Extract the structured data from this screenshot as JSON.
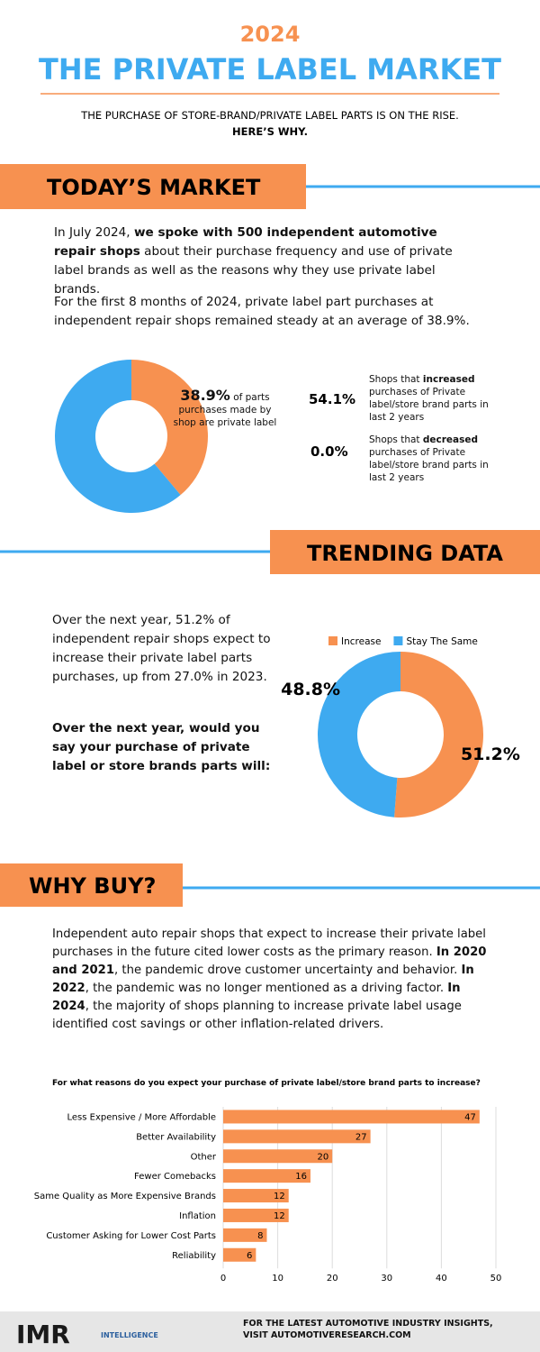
{
  "header": {
    "year": "2024",
    "title": "THE PRIVATE LABEL MARKET",
    "subtitle": "THE PURCHASE OF STORE-BRAND/PRIVATE LABEL PARTS IS ON THE RISE.",
    "subtitle_bold": "HERE’S WHY."
  },
  "market": {
    "heading": "TODAY’S MARKET",
    "paragraph1": [
      "In July 2024, ",
      "we spoke with 500 independent automotive repair shops",
      " about their purchase frequency and use of private label brands as well as the reasons why they use private label brands."
    ],
    "paragraph2": "For the first 8 months of 2024, private label part purchases at independent repair shops remained steady at an average of 38.9%.",
    "stats": [
      {
        "value": "54.1%",
        "text": [
          "Shops that ",
          "increased",
          " purchases of Private label/store brand parts in last 2 years"
        ]
      },
      {
        "value": "0.0%",
        "text": [
          "Shops that ",
          "decreased",
          " purchases of Private label/store brand parts in last 2 years"
        ]
      }
    ]
  },
  "trending": {
    "heading": "TRENDING DATA",
    "paragraph": "Over the next year, 51.2% of independent repair shops expect to increase their private label parts purchases, up from 27.0% in 2023.",
    "question": "Over the next year, would you say your purchase of private label or store brands parts will:"
  },
  "why": {
    "heading": "WHY BUY?",
    "paragraph": [
      "Independent auto repair shops that expect to increase their private label purchases in the future cited lower costs as the primary reason. ",
      "In 2020 and 2021",
      ", the pandemic drove customer uncertainty and behavior. ",
      "In 2022",
      ", the pandemic was no longer mentioned as a driving factor. ",
      "In 2024",
      ", the majority of shops planning to increase private label usage identified cost savings or other inflation-related drivers."
    ]
  },
  "footer": {
    "logo": "IMR",
    "logo_sub": "INTELLIGENCE",
    "text": "FOR THE LATEST AUTOMOTIVE INDUSTRY INSIGHTS, VISIT AUTOMOTIVERESEARCH.COM"
  },
  "chart_data": [
    {
      "type": "donut",
      "values": [
        38.9,
        61.1
      ],
      "value_labels": [
        "38.9%",
        null
      ],
      "colors": [
        "#f79150",
        "#3eaaf0"
      ],
      "annotation": "of parts purchases made by shop are private label"
    },
    {
      "type": "donut",
      "categories": [
        "Increase",
        "Stay The Same"
      ],
      "values": [
        51.2,
        48.8
      ],
      "value_labels": [
        "51.2%",
        "48.8%"
      ],
      "colors": [
        "#f79150",
        "#3eaaf0"
      ],
      "legend": "top"
    },
    {
      "type": "bar",
      "orientation": "horizontal",
      "title": "For what reasons do you expect your purchase of private label/store brand parts to increase?",
      "categories": [
        "Less Expensive / More Affordable",
        "Better Availability",
        "Other",
        "Fewer Comebacks",
        "Same Quality as More Expensive Brands",
        "Inflation",
        "Customer Asking for Lower Cost Parts",
        "Reliability"
      ],
      "values": [
        47,
        27,
        20,
        16,
        12,
        12,
        8,
        6
      ],
      "color": "#f79150",
      "xlim": [
        0,
        50
      ],
      "xticks": [
        0,
        10,
        20,
        30,
        40,
        50
      ],
      "grid": true
    }
  ]
}
